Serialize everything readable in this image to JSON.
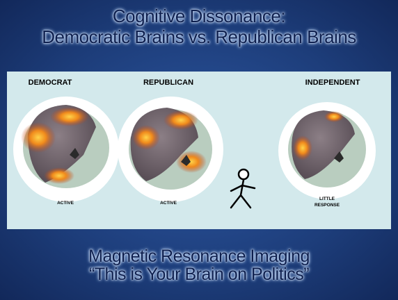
{
  "title": [
    "Cognitive Dissonance:",
    "Democratic Brains vs. Republican Brains"
  ],
  "panels": [
    {
      "label": "DEMOCRAT",
      "caption": [
        "ACTIVE"
      ]
    },
    {
      "label": "REPUBLICAN",
      "caption": [
        "ACTIVE"
      ]
    },
    {
      "label": "INDEPENDENT",
      "caption": [
        "LITTLE",
        "RESPONSE"
      ]
    }
  ],
  "footer": [
    "Magnetic Resonance Imaging",
    "“This is Your Brain on Politics”"
  ]
}
